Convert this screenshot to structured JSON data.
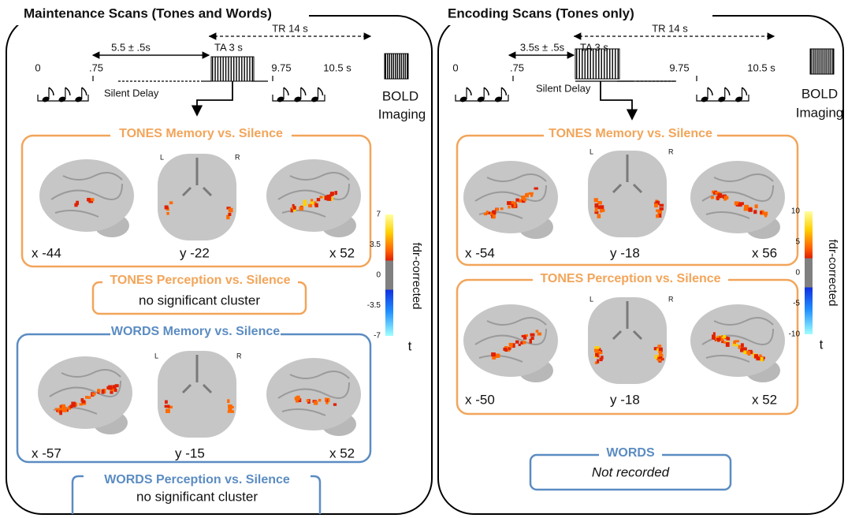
{
  "panels": [
    {
      "title": "Maintenance Scans (Tones and Words)",
      "timeline": {
        "tr": "TR 14 s",
        "jitter": "5.5 ± .5s",
        "ta": "TA 3 s",
        "times": [
          "0",
          ".75",
          "9.75",
          "10.5 s"
        ],
        "delay": "Silent Delay"
      },
      "imaging": [
        "BOLD",
        "Imaging"
      ],
      "boxes": [
        {
          "title": "TONES Memory vs. Silence",
          "sides": [
            "L",
            "R"
          ],
          "slices": [
            "x -44",
            "y -22",
            "x 52"
          ]
        },
        {
          "title": "TONES Perception vs. Silence",
          "text": "no significant cluster"
        },
        {
          "title": "WORDS Memory vs. Silence",
          "sides": [
            "L",
            "R"
          ],
          "slices": [
            "x -57",
            "y -15",
            "x 52"
          ]
        },
        {
          "title": "WORDS Perception vs. Silence",
          "text": "no significant cluster"
        }
      ],
      "colorbar": {
        "ticks": [
          7,
          3.5,
          0,
          -3.5,
          -7
        ],
        "label": "fdr-corrected",
        "unit": "t"
      }
    },
    {
      "title": "Encoding Scans (Tones only)",
      "timeline": {
        "tr": "TR 14 s",
        "jitter": "3.5s ± .5s",
        "ta": "TA 3 s",
        "times": [
          "0",
          ".75",
          "9.75",
          "10.5 s"
        ],
        "delay": "Silent Delay"
      },
      "imaging": [
        "BOLD",
        "Imaging"
      ],
      "boxes": [
        {
          "title": "TONES Memory vs. Silence",
          "sides": [
            "L",
            "R"
          ],
          "slices": [
            "x -54",
            "y -18",
            "x 56"
          ]
        },
        {
          "title": "TONES Perception vs. Silence",
          "sides": [
            "L",
            "R"
          ],
          "slices": [
            "x -50",
            "y -18",
            "x 52"
          ]
        },
        {
          "title": "WORDS",
          "text": "Not recorded"
        }
      ],
      "colorbar": {
        "ticks": [
          10,
          5,
          0,
          -5,
          -10
        ],
        "label": "fdr-corrected",
        "unit": "t"
      }
    }
  ]
}
